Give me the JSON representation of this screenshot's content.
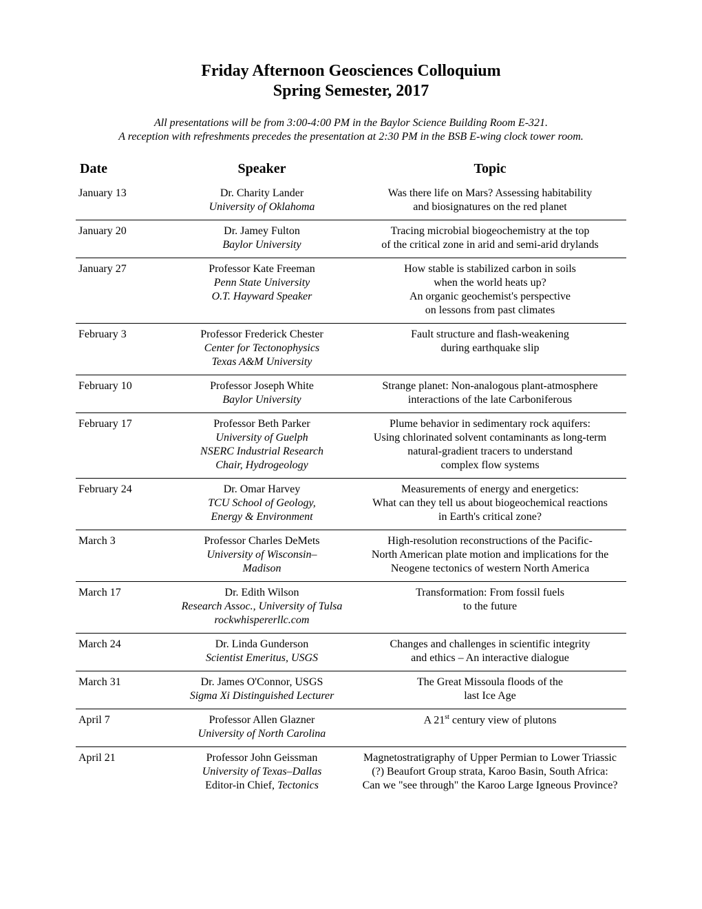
{
  "title": "Friday Afternoon Geosciences Colloquium",
  "subtitle": "Spring Semester, 2017",
  "note1": "All presentations will be from 3:00-4:00 PM in the Baylor Science Building Room E-321.",
  "note2": "A reception with refreshments precedes the presentation at 2:30 PM in the BSB E-wing clock tower room.",
  "headers": {
    "date": "Date",
    "speaker": "Speaker",
    "topic": "Topic"
  },
  "rows": [
    {
      "date": "January 13",
      "name": "Dr. Charity Lander",
      "affil": [
        "University of Oklahoma"
      ],
      "topic": [
        "Was there life on Mars?  Assessing habitability",
        "and biosignatures on the red planet"
      ]
    },
    {
      "date": "January 20",
      "name": "Dr. Jamey Fulton",
      "affil": [
        "Baylor University"
      ],
      "topic": [
        "Tracing microbial biogeochemistry at the top",
        "of the critical zone in arid and semi-arid drylands"
      ]
    },
    {
      "date": "January 27",
      "name": "Professor Kate Freeman",
      "affil": [
        "Penn State University",
        "O.T. Hayward Speaker"
      ],
      "topic": [
        "How stable is stabilized carbon in soils",
        "when the world heats up?",
        "An organic geochemist's perspective",
        "on lessons from past climates"
      ]
    },
    {
      "date": "February 3",
      "name": "Professor Frederick Chester",
      "affil": [
        "Center for Tectonophysics",
        "Texas A&M University"
      ],
      "topic": [
        "Fault structure and flash-weakening",
        "during earthquake slip"
      ]
    },
    {
      "date": "February 10",
      "name": "Professor Joseph White",
      "affil": [
        "Baylor University"
      ],
      "topic": [
        "Strange planet:  Non-analogous plant-atmosphere",
        "interactions of the late Carboniferous"
      ]
    },
    {
      "date": "February 17",
      "name": "Professor Beth Parker",
      "affil": [
        "University of Guelph",
        "NSERC Industrial Research",
        "Chair, Hydrogeology"
      ],
      "topic": [
        "Plume behavior in sedimentary rock aquifers:",
        "Using chlorinated solvent contaminants as long-term",
        "natural-gradient tracers to understand",
        "complex flow systems"
      ]
    },
    {
      "date": "February 24",
      "name": "Dr. Omar Harvey",
      "affil": [
        "TCU School of Geology,",
        "Energy & Environment"
      ],
      "topic": [
        "Measurements of energy and energetics:",
        "What can they tell us about biogeochemical reactions",
        "in Earth's critical zone?"
      ]
    },
    {
      "date": "March 3",
      "name": "Professor Charles DeMets",
      "affil": [
        "University of Wisconsin–",
        "Madison"
      ],
      "topic": [
        "High-resolution reconstructions of the Pacific-",
        "North American plate motion and implications for the",
        "Neogene tectonics of western North America"
      ]
    },
    {
      "date": "March 17",
      "name": "Dr. Edith Wilson",
      "affil": [
        "Research Assoc., University of Tulsa",
        "rockwhispererllc.com"
      ],
      "topic": [
        "Transformation:  From fossil fuels",
        "to the future"
      ]
    },
    {
      "date": "March 24",
      "name": "Dr. Linda Gunderson",
      "affil": [
        "Scientist Emeritus, USGS"
      ],
      "topic": [
        "Changes and challenges in scientific integrity",
        "and ethics – An interactive dialogue"
      ]
    },
    {
      "date": "March 31",
      "name": "Dr. James O'Connor, USGS",
      "affil": [
        "Sigma Xi Distinguished Lecturer"
      ],
      "topic": [
        "The Great Missoula floods of the",
        "last Ice Age"
      ]
    },
    {
      "date": "April 7",
      "name": "Professor Allen Glazner",
      "affil": [
        "University of North Carolina"
      ],
      "topic": [
        "A 21<sup>st</sup> century view of plutons"
      ]
    },
    {
      "date": "April 21",
      "name": "Professor John Geissman",
      "affil": [
        "University of Texas–Dallas",
        "<span style=\"font-style:normal\">Editor-in Chief,</span> Tectonics"
      ],
      "topic": [
        "Magnetostratigraphy of Upper Permian to Lower Triassic",
        "(?) Beaufort Group strata, Karoo Basin, South Africa:",
        "Can we \"see through\" the Karoo Large Igneous Province?"
      ]
    }
  ]
}
